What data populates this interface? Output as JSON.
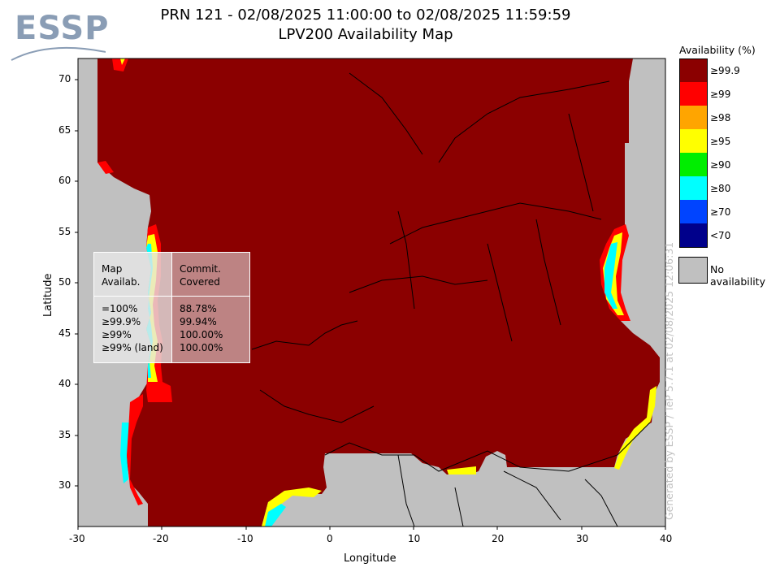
{
  "logo": {
    "text": "ESSP"
  },
  "title": {
    "line1": "PRN 121 - 02/08/2025 11:00:00 to 02/08/2025 11:59:59",
    "line2": "LPV200 Availability Map"
  },
  "axes": {
    "xlabel": "Longitude",
    "ylabel": "Latitude",
    "x_ticks": [
      "-30",
      "-20",
      "-10",
      "0",
      "10",
      "20",
      "30",
      "40"
    ],
    "y_ticks": [
      "70",
      "65",
      "60",
      "55",
      "50",
      "45",
      "40",
      "35",
      "30"
    ]
  },
  "legend": {
    "title": "Availability (%)",
    "items": [
      {
        "label": "≥99.9",
        "color": "#8b0000"
      },
      {
        "label": "≥99",
        "color": "#ff0000"
      },
      {
        "label": "≥98",
        "color": "#ffa500"
      },
      {
        "label": "≥95",
        "color": "#ffff00"
      },
      {
        "label": "≥90",
        "color": "#00ee00"
      },
      {
        "label": "≥80",
        "color": "#00ffff"
      },
      {
        "label": "≥70",
        "color": "#0044ff"
      },
      {
        "label": "<70",
        "color": "#00008b"
      }
    ],
    "no_availability": {
      "label": "No availability",
      "color": "#c0c0c0"
    }
  },
  "stats": {
    "header_left": [
      "Map",
      "Availab."
    ],
    "header_right": [
      "Commit.",
      "Covered"
    ],
    "rows_left": [
      "=100%",
      "≥99.9%",
      "≥99%",
      "≥99% (land)"
    ],
    "rows_right": [
      "88.78%",
      "99.94%",
      "100.00%",
      "100.00%"
    ]
  },
  "watermark": "Generated by ESSP / TeP 5.7.1 at 02/08/2025 12:06:31",
  "colors": {
    "availability_high": "#8b0000",
    "no_coverage": "#c0c0c0"
  }
}
